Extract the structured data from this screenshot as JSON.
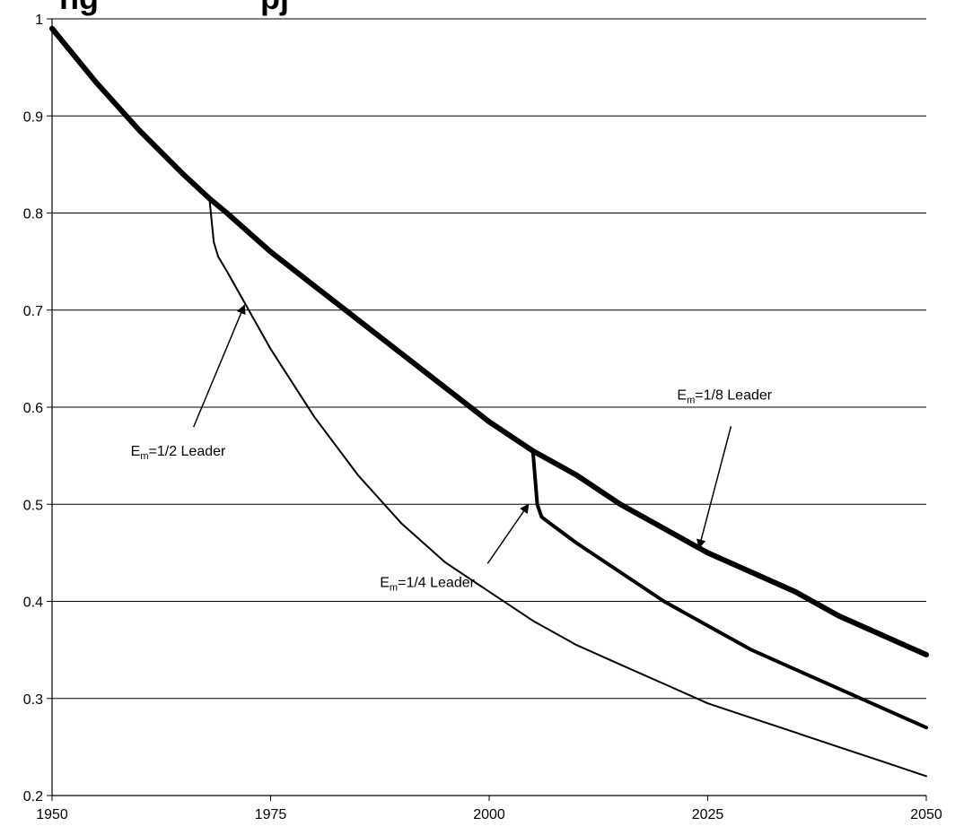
{
  "chart_data": {
    "type": "line",
    "title": "ng",
    "title_fragment_2": "pj",
    "xlabel": "",
    "ylabel": "",
    "xlim": [
      1950,
      2050
    ],
    "ylim": [
      0.2,
      1.0
    ],
    "x_ticks": [
      1950,
      1975,
      2000,
      2025,
      2050
    ],
    "y_ticks": [
      0.2,
      0.3,
      0.4,
      0.5,
      0.6,
      0.7,
      0.8,
      0.9,
      1.0
    ],
    "y_tick_labels": [
      "0.2",
      "0.3",
      "0.4",
      "0.5",
      "0.6",
      "0.7",
      "0.8",
      "0.9",
      "1"
    ],
    "grid": "horizontal",
    "colors": {
      "line": "#000000",
      "grid": "#000000",
      "background": "#ffffff"
    },
    "series": [
      {
        "name": "1/8",
        "x": [
          1950,
          1955,
          1960,
          1965,
          1968,
          1970,
          1975,
          1980,
          1985,
          1990,
          1995,
          2000,
          2005,
          2010,
          2015,
          2020,
          2025,
          2030,
          2035,
          2040,
          2045,
          2050
        ],
        "y": [
          0.99,
          0.935,
          0.885,
          0.84,
          0.815,
          0.8,
          0.76,
          0.725,
          0.69,
          0.655,
          0.62,
          0.585,
          0.555,
          0.53,
          0.5,
          0.475,
          0.45,
          0.43,
          0.41,
          0.385,
          0.365,
          0.345
        ]
      },
      {
        "name": "1/4",
        "x": [
          2005,
          2005.5,
          2006,
          2007,
          2010,
          2015,
          2020,
          2025,
          2030,
          2035,
          2040,
          2045,
          2050
        ],
        "y": [
          0.555,
          0.5,
          0.487,
          0.48,
          0.46,
          0.43,
          0.4,
          0.375,
          0.35,
          0.33,
          0.31,
          0.29,
          0.27
        ]
      },
      {
        "name": "1/2",
        "x": [
          1968,
          1968.5,
          1969,
          1970,
          1975,
          1980,
          1985,
          1990,
          1995,
          2000,
          2005,
          2010,
          2015,
          2020,
          2025,
          2030,
          2035,
          2040,
          2045,
          2050
        ],
        "y": [
          0.815,
          0.77,
          0.755,
          0.74,
          0.66,
          0.59,
          0.53,
          0.48,
          0.44,
          0.41,
          0.38,
          0.355,
          0.335,
          0.315,
          0.295,
          0.28,
          0.265,
          0.25,
          0.235,
          0.22
        ]
      }
    ],
    "annotations": [
      {
        "prefix": "E",
        "sub": "m",
        "suffix": "=1/2 Leader",
        "anchor_year": 1972,
        "anchor_value": 0.705,
        "label_year": 1959,
        "label_value": 0.55
      },
      {
        "prefix": "E",
        "sub": "m",
        "suffix": "=1/4 Leader",
        "anchor_year": 2004.5,
        "anchor_value": 0.5,
        "label_year": 1987.5,
        "label_value": 0.415
      },
      {
        "prefix": "E",
        "sub": "m",
        "suffix": "=1/8 Leader",
        "anchor_year": 2024,
        "anchor_value": 0.455,
        "label_year": 2021.5,
        "label_value": 0.608
      }
    ]
  }
}
